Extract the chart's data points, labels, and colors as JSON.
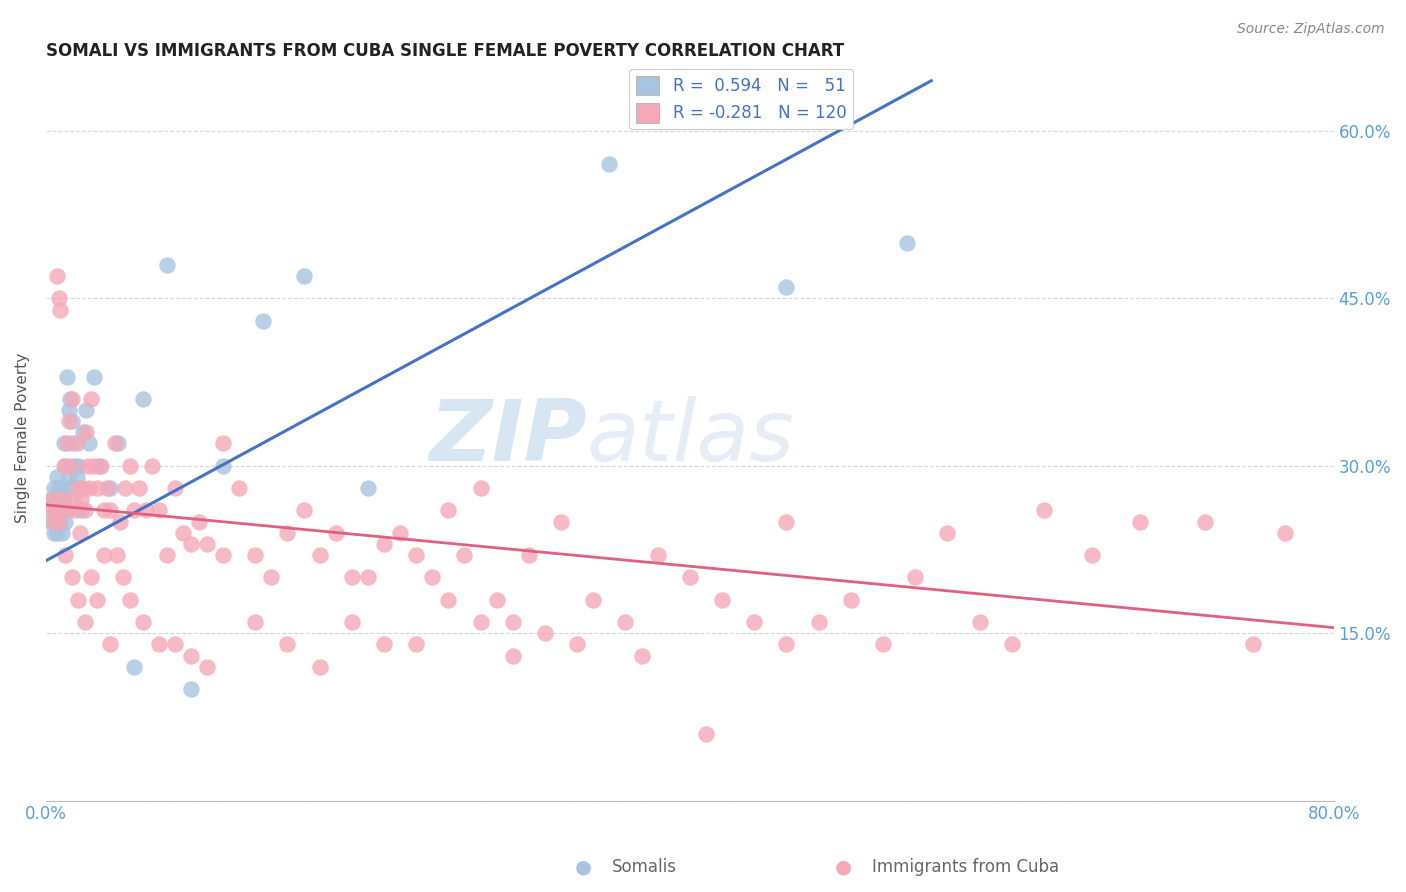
{
  "title": "SOMALI VS IMMIGRANTS FROM CUBA SINGLE FEMALE POVERTY CORRELATION CHART",
  "source": "Source: ZipAtlas.com",
  "ylabel": "Single Female Poverty",
  "xlim": [
    0.0,
    0.8
  ],
  "ylim": [
    0.0,
    0.65
  ],
  "legend_label1": "Somalis",
  "legend_label2": "Immigrants from Cuba",
  "R1": 0.594,
  "N1": 51,
  "R2": -0.281,
  "N2": 120,
  "color1": "#a8c4e0",
  "color2": "#f4a8b8",
  "line_color1": "#4472c4",
  "line_color2": "#e06080",
  "tick_color": "#5a9fd4",
  "watermark_zip": "ZIP",
  "watermark_atlas": "atlas",
  "blue_line_x0": 0.0,
  "blue_line_y0": 0.215,
  "blue_line_x1": 0.55,
  "blue_line_y1": 0.645,
  "pink_line_x0": 0.0,
  "pink_line_y0": 0.265,
  "pink_line_x1": 0.8,
  "pink_line_y1": 0.155,
  "somali_x": [
    0.003,
    0.004,
    0.005,
    0.005,
    0.005,
    0.006,
    0.006,
    0.007,
    0.007,
    0.008,
    0.008,
    0.009,
    0.009,
    0.01,
    0.01,
    0.01,
    0.011,
    0.011,
    0.012,
    0.012,
    0.013,
    0.013,
    0.014,
    0.014,
    0.015,
    0.015,
    0.016,
    0.017,
    0.018,
    0.019,
    0.02,
    0.021,
    0.022,
    0.023,
    0.025,
    0.027,
    0.03,
    0.033,
    0.04,
    0.045,
    0.055,
    0.06,
    0.075,
    0.09,
    0.11,
    0.135,
    0.16,
    0.2,
    0.35,
    0.46,
    0.535
  ],
  "somali_y": [
    0.25,
    0.27,
    0.26,
    0.28,
    0.24,
    0.25,
    0.27,
    0.29,
    0.24,
    0.28,
    0.26,
    0.25,
    0.27,
    0.26,
    0.28,
    0.24,
    0.32,
    0.27,
    0.25,
    0.3,
    0.26,
    0.38,
    0.35,
    0.29,
    0.36,
    0.28,
    0.34,
    0.32,
    0.3,
    0.29,
    0.3,
    0.28,
    0.26,
    0.33,
    0.35,
    0.32,
    0.38,
    0.3,
    0.28,
    0.32,
    0.12,
    0.36,
    0.48,
    0.1,
    0.3,
    0.43,
    0.47,
    0.28,
    0.57,
    0.46,
    0.5
  ],
  "cuba_x": [
    0.003,
    0.004,
    0.005,
    0.006,
    0.007,
    0.008,
    0.009,
    0.01,
    0.011,
    0.012,
    0.013,
    0.014,
    0.015,
    0.016,
    0.017,
    0.018,
    0.019,
    0.02,
    0.021,
    0.022,
    0.023,
    0.024,
    0.025,
    0.026,
    0.027,
    0.028,
    0.03,
    0.032,
    0.034,
    0.036,
    0.038,
    0.04,
    0.043,
    0.046,
    0.049,
    0.052,
    0.055,
    0.058,
    0.062,
    0.066,
    0.07,
    0.075,
    0.08,
    0.085,
    0.09,
    0.095,
    0.1,
    0.11,
    0.12,
    0.13,
    0.14,
    0.15,
    0.16,
    0.17,
    0.18,
    0.19,
    0.2,
    0.21,
    0.22,
    0.23,
    0.24,
    0.25,
    0.26,
    0.27,
    0.28,
    0.29,
    0.3,
    0.32,
    0.34,
    0.36,
    0.38,
    0.4,
    0.42,
    0.44,
    0.46,
    0.48,
    0.5,
    0.52,
    0.54,
    0.56,
    0.58,
    0.6,
    0.62,
    0.65,
    0.68,
    0.72,
    0.75,
    0.77,
    0.008,
    0.012,
    0.016,
    0.02,
    0.024,
    0.028,
    0.032,
    0.036,
    0.04,
    0.044,
    0.048,
    0.052,
    0.06,
    0.07,
    0.08,
    0.09,
    0.1,
    0.11,
    0.13,
    0.15,
    0.17,
    0.19,
    0.21,
    0.23,
    0.25,
    0.27,
    0.29,
    0.31,
    0.33,
    0.37,
    0.41,
    0.46
  ],
  "cuba_y": [
    0.26,
    0.27,
    0.25,
    0.26,
    0.47,
    0.45,
    0.44,
    0.27,
    0.3,
    0.26,
    0.32,
    0.34,
    0.3,
    0.36,
    0.27,
    0.26,
    0.32,
    0.28,
    0.24,
    0.27,
    0.28,
    0.26,
    0.33,
    0.3,
    0.28,
    0.36,
    0.3,
    0.28,
    0.3,
    0.26,
    0.28,
    0.26,
    0.32,
    0.25,
    0.28,
    0.3,
    0.26,
    0.28,
    0.26,
    0.3,
    0.26,
    0.22,
    0.28,
    0.24,
    0.23,
    0.25,
    0.23,
    0.32,
    0.28,
    0.22,
    0.2,
    0.24,
    0.26,
    0.22,
    0.24,
    0.2,
    0.2,
    0.23,
    0.24,
    0.22,
    0.2,
    0.18,
    0.22,
    0.28,
    0.18,
    0.16,
    0.22,
    0.25,
    0.18,
    0.16,
    0.22,
    0.2,
    0.18,
    0.16,
    0.25,
    0.16,
    0.18,
    0.14,
    0.2,
    0.24,
    0.16,
    0.14,
    0.26,
    0.22,
    0.25,
    0.25,
    0.14,
    0.24,
    0.25,
    0.22,
    0.2,
    0.18,
    0.16,
    0.2,
    0.18,
    0.22,
    0.14,
    0.22,
    0.2,
    0.18,
    0.16,
    0.14,
    0.14,
    0.13,
    0.12,
    0.22,
    0.16,
    0.14,
    0.12,
    0.16,
    0.14,
    0.14,
    0.26,
    0.16,
    0.13,
    0.15,
    0.14,
    0.13,
    0.06,
    0.14
  ]
}
